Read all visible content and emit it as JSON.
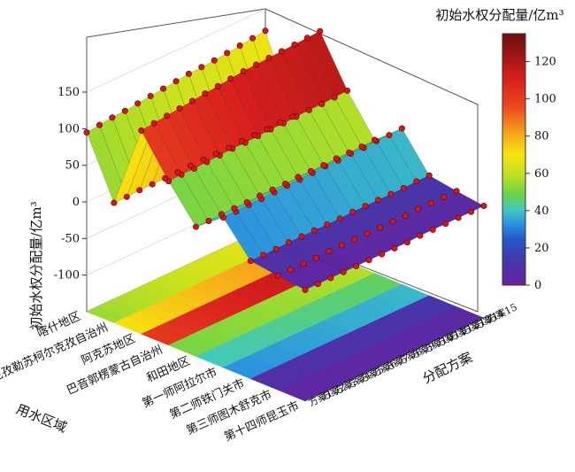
{
  "chart_data": {
    "type": "surface3d",
    "zlabel": "初始水权分配量/亿m³",
    "colorbar_title": "初始水权分配量/亿m³",
    "xlabel": "用水区域",
    "ylabel": "分配方案",
    "zlim": [
      -150,
      150
    ],
    "zticks": [
      -100,
      -50,
      0,
      50,
      100,
      150
    ],
    "colorbar_range": [
      0,
      135
    ],
    "colorbar_ticks": [
      0,
      20,
      40,
      60,
      80,
      100,
      120
    ],
    "regions": [
      "喀什地区",
      "克孜勒苏柯尔克孜自治州",
      "阿克苏地区",
      "巴音郭楞蒙古自治州",
      "和田地区",
      "第一师阿拉尔市",
      "第二师铁门关市",
      "第三师图木舒克市",
      "第十四师昆玉市"
    ],
    "schemes": [
      "方案1",
      "方案2",
      "方案3",
      "方案4",
      "方案5",
      "方案6",
      "方案7",
      "方案8",
      "方案9",
      "方案10",
      "方案11",
      "方案12",
      "方案13",
      "方案14",
      "方案15"
    ],
    "values": [
      [
        95,
        14,
        128,
        74,
        27,
        55,
        11,
        6,
        2
      ],
      [
        97,
        14,
        130,
        75,
        27,
        55,
        11,
        6,
        2
      ],
      [
        99,
        15,
        132,
        75,
        28,
        56,
        11,
        6,
        2
      ],
      [
        100,
        15,
        134,
        76,
        28,
        56,
        12,
        6,
        2
      ],
      [
        102,
        15,
        136,
        77,
        28,
        57,
        12,
        7,
        2
      ],
      [
        104,
        15,
        138,
        78,
        29,
        58,
        12,
        7,
        2
      ],
      [
        106,
        16,
        140,
        78,
        29,
        58,
        12,
        7,
        2
      ],
      [
        108,
        16,
        142,
        79,
        29,
        59,
        12,
        7,
        2
      ],
      [
        110,
        16,
        144,
        80,
        30,
        60,
        13,
        7,
        2
      ],
      [
        111,
        16,
        145,
        80,
        30,
        60,
        13,
        7,
        3
      ],
      [
        112,
        17,
        146,
        81,
        30,
        61,
        13,
        7,
        3
      ],
      [
        114,
        17,
        147,
        82,
        31,
        61,
        13,
        8,
        3
      ],
      [
        116,
        17,
        148,
        82,
        31,
        62,
        13,
        8,
        3
      ],
      [
        118,
        18,
        149,
        83,
        31,
        62,
        14,
        8,
        3
      ],
      [
        120,
        18,
        150,
        84,
        32,
        63,
        14,
        8,
        3
      ]
    ]
  }
}
